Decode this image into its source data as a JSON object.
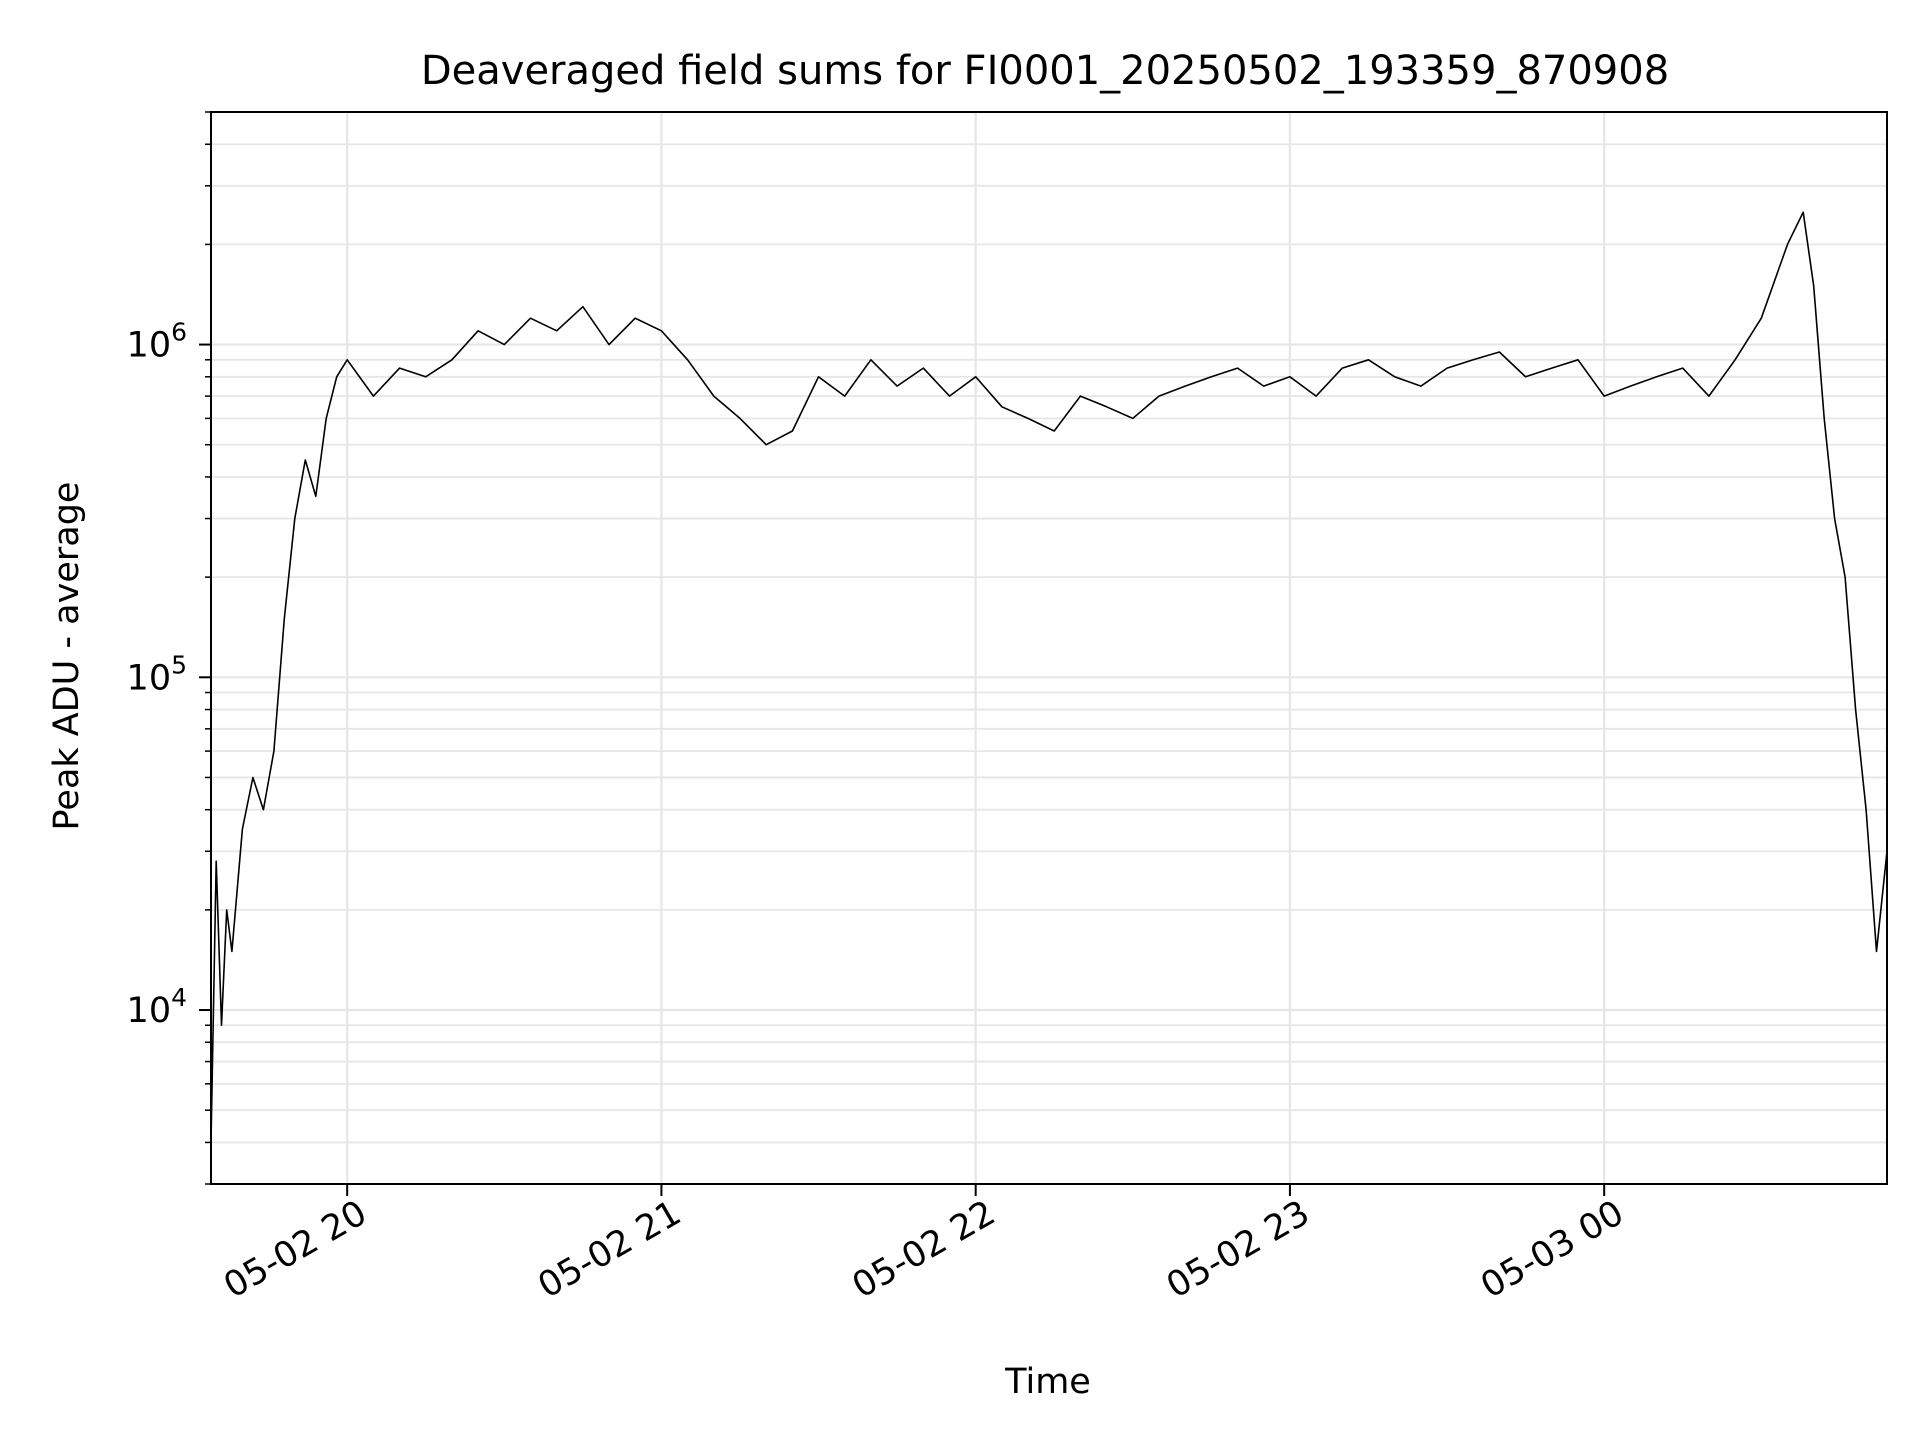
{
  "chart_data": {
    "type": "line",
    "title": "Deaveraged field sums for FI0001_20250502_193359_870908",
    "xlabel": "Time",
    "ylabel": "Peak ADU - average",
    "yscale": "log",
    "ylim": [
      3000,
      5000000
    ],
    "xlim": [
      "2025-05-02 19:34",
      "2025-05-03 00:54"
    ],
    "x_tick_labels": [
      "05-02 20",
      "05-02 21",
      "05-02 22",
      "05-02 23",
      "05-03 00"
    ],
    "x_ticks": [
      "2025-05-02 20:00",
      "2025-05-02 21:00",
      "2025-05-02 22:00",
      "2025-05-02 23:00",
      "2025-05-03 00:00"
    ],
    "y_tick_labels": [
      {
        "base": "10",
        "exp": "4",
        "value": 10000
      },
      {
        "base": "10",
        "exp": "5",
        "value": 100000
      },
      {
        "base": "10",
        "exp": "6",
        "value": 1000000
      }
    ],
    "grid": true,
    "line_color": "#000000",
    "grid_color": "#e6e6e6",
    "series": [
      {
        "x": [
          "2025-05-02 19:34",
          "2025-05-02 19:35",
          "2025-05-02 19:36",
          "2025-05-02 19:37",
          "2025-05-02 19:38",
          "2025-05-02 19:40",
          "2025-05-02 19:42",
          "2025-05-02 19:44",
          "2025-05-02 19:46",
          "2025-05-02 19:48",
          "2025-05-02 19:50",
          "2025-05-02 19:52",
          "2025-05-02 19:54",
          "2025-05-02 19:56",
          "2025-05-02 19:58",
          "2025-05-02 20:00",
          "2025-05-02 20:05",
          "2025-05-02 20:10",
          "2025-05-02 20:15",
          "2025-05-02 20:20",
          "2025-05-02 20:25",
          "2025-05-02 20:30",
          "2025-05-02 20:35",
          "2025-05-02 20:40",
          "2025-05-02 20:45",
          "2025-05-02 20:50",
          "2025-05-02 20:55",
          "2025-05-02 21:00",
          "2025-05-02 21:05",
          "2025-05-02 21:10",
          "2025-05-02 21:15",
          "2025-05-02 21:20",
          "2025-05-02 21:25",
          "2025-05-02 21:30",
          "2025-05-02 21:35",
          "2025-05-02 21:40",
          "2025-05-02 21:45",
          "2025-05-02 21:50",
          "2025-05-02 21:55",
          "2025-05-02 22:00",
          "2025-05-02 22:05",
          "2025-05-02 22:10",
          "2025-05-02 22:15",
          "2025-05-02 22:20",
          "2025-05-02 22:25",
          "2025-05-02 22:30",
          "2025-05-02 22:35",
          "2025-05-02 22:40",
          "2025-05-02 22:45",
          "2025-05-02 22:50",
          "2025-05-02 22:55",
          "2025-05-02 23:00",
          "2025-05-02 23:05",
          "2025-05-02 23:10",
          "2025-05-02 23:15",
          "2025-05-02 23:20",
          "2025-05-02 23:25",
          "2025-05-02 23:30",
          "2025-05-02 23:35",
          "2025-05-02 23:40",
          "2025-05-02 23:45",
          "2025-05-02 23:50",
          "2025-05-02 23:55",
          "2025-05-03 00:00",
          "2025-05-03 00:05",
          "2025-05-03 00:10",
          "2025-05-03 00:15",
          "2025-05-03 00:20",
          "2025-05-03 00:25",
          "2025-05-03 00:30",
          "2025-05-03 00:35",
          "2025-05-03 00:38",
          "2025-05-03 00:40",
          "2025-05-03 00:42",
          "2025-05-03 00:44",
          "2025-05-03 00:46",
          "2025-05-03 00:48",
          "2025-05-03 00:50",
          "2025-05-03 00:52",
          "2025-05-03 00:54"
        ],
        "values": [
          4000,
          28000,
          9000,
          20000,
          15000,
          35000,
          50000,
          40000,
          60000,
          150000,
          300000,
          450000,
          350000,
          600000,
          800000,
          900000,
          700000,
          850000,
          800000,
          900000,
          1100000,
          1000000,
          1200000,
          1100000,
          1300000,
          1000000,
          1200000,
          1100000,
          900000,
          700000,
          600000,
          500000,
          550000,
          800000,
          700000,
          900000,
          750000,
          850000,
          700000,
          800000,
          650000,
          600000,
          550000,
          700000,
          650000,
          600000,
          700000,
          750000,
          800000,
          850000,
          750000,
          800000,
          700000,
          850000,
          900000,
          800000,
          750000,
          850000,
          900000,
          950000,
          800000,
          850000,
          900000,
          700000,
          750000,
          800000,
          850000,
          700000,
          900000,
          1200000,
          2000000,
          2500000,
          1500000,
          600000,
          300000,
          200000,
          80000,
          40000,
          15000,
          30000
        ]
      }
    ]
  }
}
